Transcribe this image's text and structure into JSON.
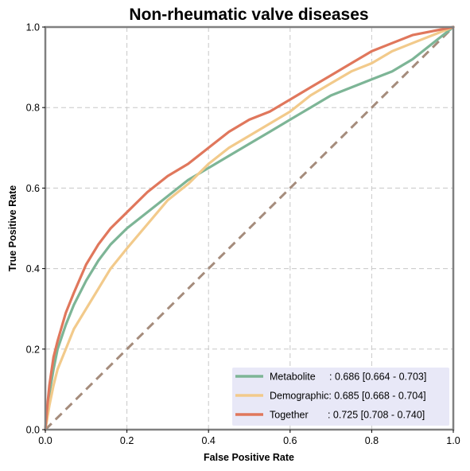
{
  "chart_data": {
    "type": "line",
    "title": "Non-rheumatic valve diseases",
    "xlabel": "False Positive Rate",
    "ylabel": "True Positive Rate",
    "xlim": [
      0,
      1
    ],
    "ylim": [
      0,
      1
    ],
    "xticks": [
      0.0,
      0.2,
      0.4,
      0.6,
      0.8,
      1.0
    ],
    "yticks": [
      0.0,
      0.2,
      0.4,
      0.6,
      0.8,
      1.0
    ],
    "xtick_labels": [
      "0.0",
      "0.2",
      "0.4",
      "0.6",
      "0.8",
      "1.0"
    ],
    "ytick_labels": [
      "0.0",
      "0.2",
      "0.4",
      "0.6",
      "0.8",
      "1.0"
    ],
    "grid": true,
    "legend_position": "bottom-right",
    "series": [
      {
        "name": "Metabolite",
        "legend_label": "Metabolite     : 0.686 [0.664 - 0.703]",
        "color": "#7db596",
        "x": [
          0,
          0.005,
          0.01,
          0.02,
          0.03,
          0.05,
          0.07,
          0.1,
          0.13,
          0.16,
          0.2,
          0.25,
          0.3,
          0.35,
          0.4,
          0.45,
          0.5,
          0.55,
          0.6,
          0.65,
          0.7,
          0.75,
          0.8,
          0.85,
          0.9,
          0.95,
          1.0
        ],
        "y": [
          0,
          0.05,
          0.09,
          0.15,
          0.2,
          0.26,
          0.31,
          0.37,
          0.42,
          0.46,
          0.5,
          0.54,
          0.58,
          0.62,
          0.65,
          0.68,
          0.71,
          0.74,
          0.77,
          0.8,
          0.83,
          0.85,
          0.87,
          0.89,
          0.92,
          0.96,
          1.0
        ]
      },
      {
        "name": "Demographic",
        "legend_label": "Demographic: 0.685 [0.668 - 0.704]",
        "color": "#f2ca8b",
        "x": [
          0,
          0.005,
          0.01,
          0.02,
          0.03,
          0.05,
          0.07,
          0.1,
          0.13,
          0.16,
          0.2,
          0.25,
          0.3,
          0.35,
          0.4,
          0.45,
          0.5,
          0.55,
          0.6,
          0.65,
          0.7,
          0.75,
          0.8,
          0.85,
          0.9,
          0.95,
          1.0
        ],
        "y": [
          0,
          0.03,
          0.06,
          0.11,
          0.15,
          0.2,
          0.25,
          0.3,
          0.35,
          0.4,
          0.45,
          0.51,
          0.57,
          0.61,
          0.66,
          0.7,
          0.73,
          0.76,
          0.79,
          0.83,
          0.86,
          0.89,
          0.91,
          0.94,
          0.96,
          0.98,
          1.0
        ]
      },
      {
        "name": "Together",
        "legend_label": "Together       : 0.725 [0.708 - 0.740]",
        "color": "#e0775c",
        "x": [
          0,
          0.005,
          0.01,
          0.02,
          0.03,
          0.05,
          0.07,
          0.1,
          0.13,
          0.16,
          0.2,
          0.25,
          0.3,
          0.35,
          0.4,
          0.45,
          0.5,
          0.55,
          0.6,
          0.65,
          0.7,
          0.75,
          0.8,
          0.85,
          0.9,
          0.95,
          1.0
        ],
        "y": [
          0,
          0.06,
          0.11,
          0.18,
          0.22,
          0.29,
          0.34,
          0.41,
          0.46,
          0.5,
          0.54,
          0.59,
          0.63,
          0.66,
          0.7,
          0.74,
          0.77,
          0.79,
          0.82,
          0.85,
          0.88,
          0.91,
          0.94,
          0.96,
          0.98,
          0.99,
          1.0
        ]
      }
    ],
    "reference_line": {
      "x": [
        0,
        1
      ],
      "y": [
        0,
        1
      ],
      "color": "#a58c7c",
      "style": "dashed"
    },
    "frame_color": "#808080",
    "grid_color": "#c8c8c8",
    "legend_background": "#e8e8f7"
  }
}
